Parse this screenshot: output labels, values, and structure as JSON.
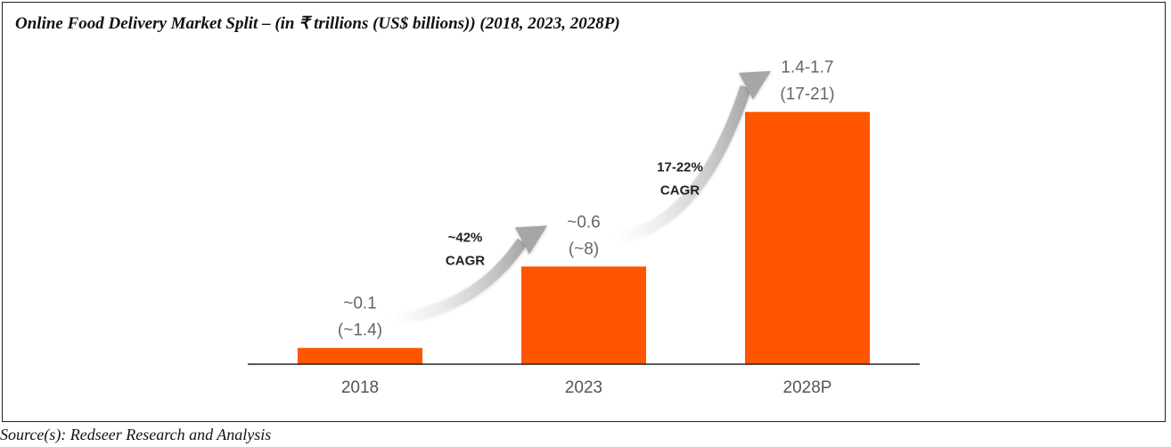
{
  "chart_data": {
    "type": "bar",
    "title": "Online Food Delivery Market Split – (in ₹ trillions (US$ billions)) (2018, 2023, 2028P)",
    "categories": [
      "2018",
      "2023",
      "2028P"
    ],
    "values": [
      0.1,
      0.6,
      1.55
    ],
    "data_labels": [
      [
        "~0.1",
        "(~1.4)"
      ],
      [
        "~0.6",
        "(~8)"
      ],
      [
        "1.4-1.7",
        "(17-21)"
      ]
    ],
    "annotations": [
      {
        "line1": "~42%",
        "line2": "CAGR",
        "from": "2018",
        "to": "2023"
      },
      {
        "line1": "17-22%",
        "line2": "CAGR",
        "from": "2023",
        "to": "2028P"
      }
    ],
    "ylim": [
      0,
      1.8
    ],
    "grid": false,
    "bar_color": "#ff5500",
    "source": "Source(s): Redseer Research and Analysis"
  }
}
